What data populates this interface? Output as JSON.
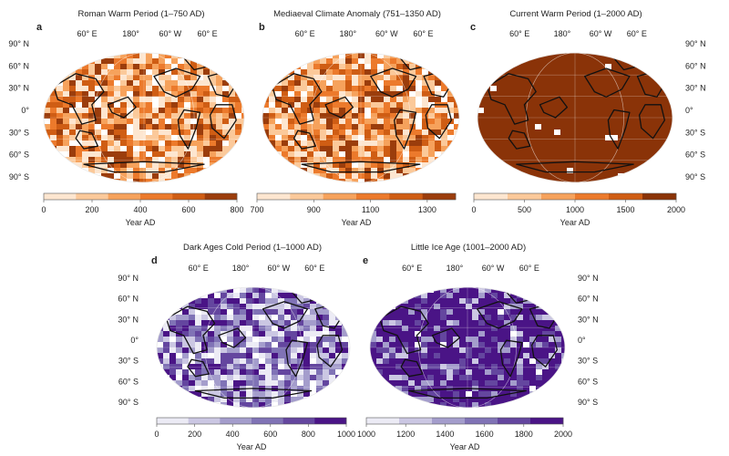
{
  "chart_data": [
    {
      "type": "heatmap",
      "panel_letter": "a",
      "title": "Roman Warm Period (1–750 AD)",
      "top_ticks": [
        "60° E",
        "180°",
        "60° W",
        "60° E"
      ],
      "lat_ticks": [
        "90° N",
        "60° N",
        "30° N",
        "0°",
        "30° S",
        "60° S",
        "90° S"
      ],
      "colorbar": {
        "label": "Year AD",
        "ticks": [
          0,
          200,
          400,
          600,
          800
        ],
        "range": [
          0,
          800
        ],
        "colors": [
          "#fde6d0",
          "#fbc99a",
          "#f6a25c",
          "#ec7a2c",
          "#cf5d14",
          "#9b3d0c"
        ]
      },
      "map_style": "mixed"
    },
    {
      "type": "heatmap",
      "panel_letter": "b",
      "title": "Mediaeval Climate Anomaly (751–1350 AD)",
      "top_ticks": [
        "60° E",
        "180°",
        "60° W",
        "60° E"
      ],
      "lat_ticks": [],
      "colorbar": {
        "label": "Year AD",
        "ticks": [
          700,
          900,
          1100,
          1300
        ],
        "range": [
          700,
          1400
        ],
        "colors": [
          "#fde6d0",
          "#fbc99a",
          "#f6a25c",
          "#ec7a2c",
          "#cf5d14",
          "#9b3d0c"
        ]
      },
      "map_style": "mixed"
    },
    {
      "type": "heatmap",
      "panel_letter": "c",
      "title": "Current Warm Period (1–2000 AD)",
      "top_ticks": [
        "60° E",
        "180°",
        "60° W",
        "60° E"
      ],
      "lat_ticks": [
        "90° N",
        "60° N",
        "30° N",
        "0°",
        "30° S",
        "60° S",
        "90° S"
      ],
      "colorbar": {
        "label": "Year AD",
        "ticks": [
          0,
          500,
          1000,
          1500,
          2000
        ],
        "range": [
          0,
          2000
        ],
        "colors": [
          "#fde6d0",
          "#fbc99a",
          "#f6a25c",
          "#ec7a2c",
          "#cf5d14",
          "#8a3308"
        ]
      },
      "map_style": "uniform"
    },
    {
      "type": "heatmap",
      "panel_letter": "d",
      "title": "Dark Ages Cold Period (1–1000 AD)",
      "top_ticks": [
        "60° E",
        "180°",
        "60° W",
        "60° E"
      ],
      "lat_ticks": [
        "90° N",
        "60° N",
        "30° N",
        "0°",
        "30° S",
        "60° S",
        "90° S"
      ],
      "colorbar": {
        "label": "Year AD",
        "ticks": [
          0,
          200,
          400,
          600,
          800,
          1000
        ],
        "range": [
          0,
          1000
        ],
        "colors": [
          "#ecebf5",
          "#cbc7e3",
          "#a49dcc",
          "#8073b6",
          "#64469f",
          "#4a1486"
        ]
      },
      "map_style": "mixed"
    },
    {
      "type": "heatmap",
      "panel_letter": "e",
      "title": "Little Ice Age (1001–2000 AD)",
      "top_ticks": [
        "60° E",
        "180°",
        "60° W",
        "60° E"
      ],
      "lat_ticks": [
        "90° N",
        "60° N",
        "30° N",
        "0°",
        "30° S",
        "60° S",
        "90° S"
      ],
      "colorbar": {
        "label": "Year AD",
        "ticks": [
          1000,
          1200,
          1400,
          1600,
          1800,
          2000
        ],
        "range": [
          1000,
          2000
        ],
        "colors": [
          "#ecebf5",
          "#cbc7e3",
          "#a49dcc",
          "#8073b6",
          "#64469f",
          "#4a1486"
        ]
      },
      "map_style": "mostly-dark"
    }
  ]
}
